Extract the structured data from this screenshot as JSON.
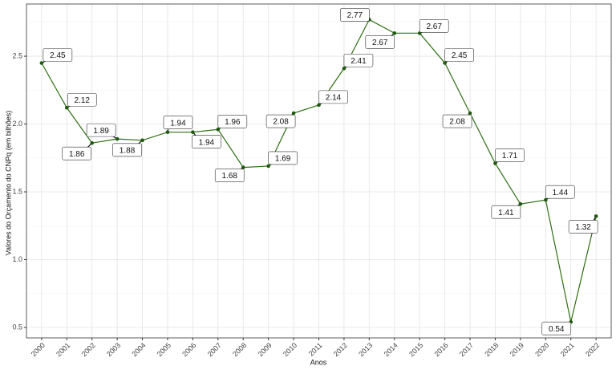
{
  "chart_data": {
    "type": "line",
    "x_label": "Anos",
    "y_label": "Valores do Orçamento do CNPq (em bilhões)",
    "categories": [
      "2000",
      "2001",
      "2002",
      "2003",
      "2004",
      "2005",
      "2006",
      "2007",
      "2008",
      "2009",
      "2010",
      "2011",
      "2012",
      "2013",
      "2014",
      "2015",
      "2016",
      "2017",
      "2018",
      "2019",
      "2020",
      "2021",
      "2022"
    ],
    "values": [
      2.45,
      2.12,
      1.86,
      1.89,
      1.88,
      1.94,
      1.94,
      1.96,
      1.68,
      1.69,
      2.08,
      2.14,
      2.41,
      2.77,
      2.67,
      2.67,
      2.45,
      2.08,
      1.71,
      1.41,
      1.44,
      0.54,
      1.32
    ],
    "color": "#2e6f14",
    "ylim": [
      0.423,
      2.885
    ],
    "yticks": [
      0.5,
      {
        "value": 1,
        "label": "1.0"
      },
      1.5,
      {
        "value": 2,
        "label": "2.0"
      },
      2.5
    ],
    "grid": true
  }
}
